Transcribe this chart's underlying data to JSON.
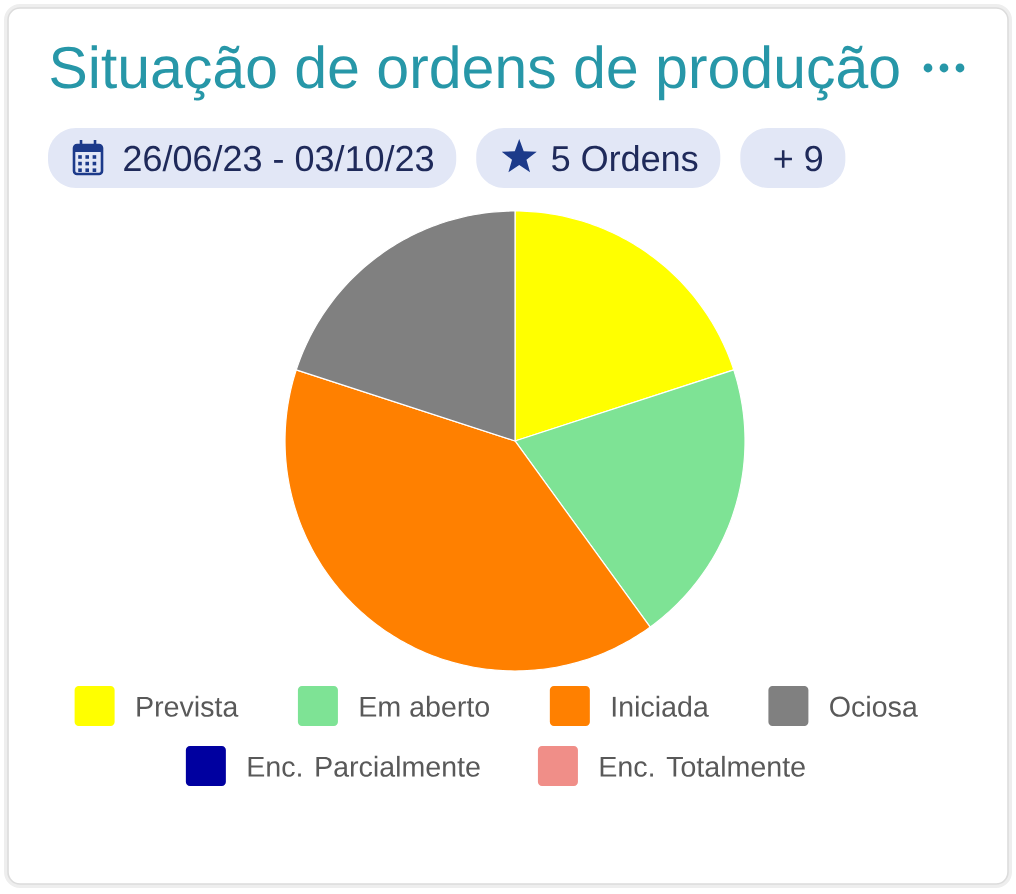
{
  "chart_data": {
    "type": "pie",
    "title": "Situação de ordens de produção",
    "annotations": [
      "26/06/23 - 03/10/23",
      "5 Ordens",
      "+ 9"
    ],
    "categories": [
      "Prevista",
      "Em aberto",
      "Iniciada",
      "Ociosa",
      "Enc. Parcialmente",
      "Enc. Totalmente"
    ],
    "values": [
      20,
      20,
      40,
      20,
      0,
      0
    ],
    "colors": [
      "#ffff00",
      "#7ee395",
      "#ff8000",
      "#808080",
      "#0000a0",
      "#f08e88"
    ],
    "legend": "bottom"
  }
}
